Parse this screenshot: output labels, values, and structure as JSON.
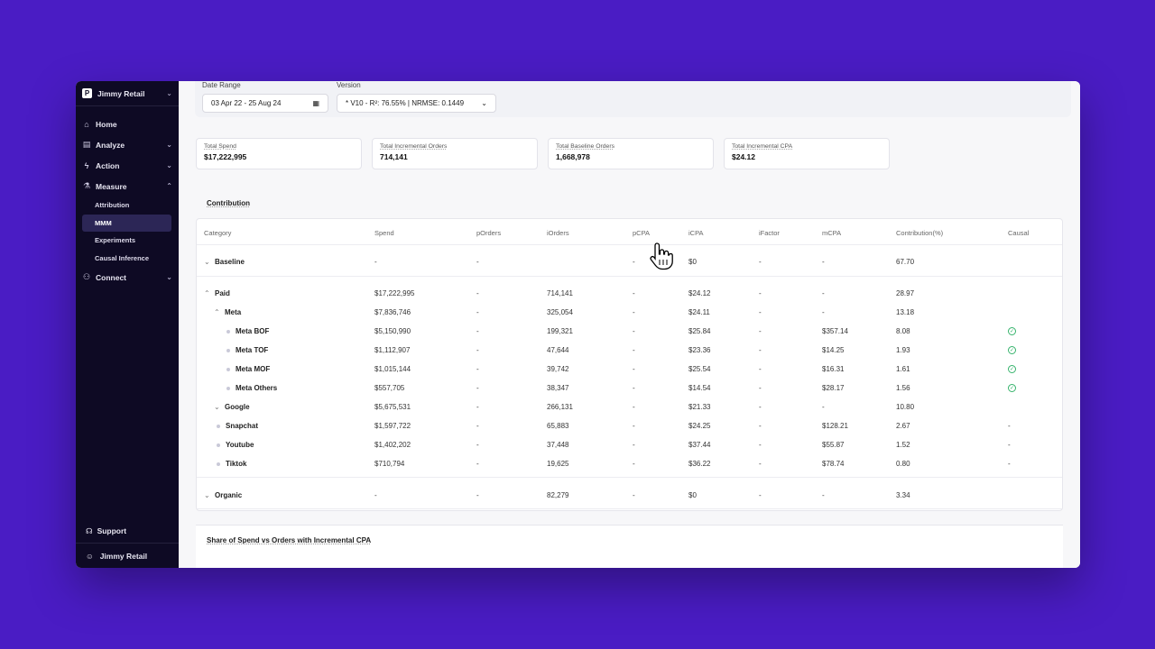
{
  "sidebar": {
    "workspace": "Jimmy Retail",
    "workspace_logo": "P",
    "nav": [
      {
        "label": "Home",
        "icon": "home-icon"
      },
      {
        "label": "Analyze",
        "icon": "analyze-icon"
      },
      {
        "label": "Action",
        "icon": "bolt-icon"
      },
      {
        "label": "Measure",
        "icon": "flask-icon"
      }
    ],
    "measure_sub": [
      "Attribution",
      "MMM",
      "Experiments",
      "Causal Inference"
    ],
    "connect": "Connect",
    "support": "Support",
    "user": "Jimmy Retail"
  },
  "filters": {
    "date_label": "Date Range",
    "date_value": "03 Apr 22 - 25 Aug 24",
    "version_label": "Version",
    "version_value": "* V10 - R²: 76.55% | NRMSE: 0.1449"
  },
  "cards": [
    {
      "label": "Total Spend",
      "value": "$17,222,995"
    },
    {
      "label": "Total Incremental Orders",
      "value": "714,141"
    },
    {
      "label": "Total Baseline Orders",
      "value": "1,668,978"
    },
    {
      "label": "Total Incremental CPA",
      "value": "$24.12"
    }
  ],
  "contribution": {
    "title": "Contribution",
    "headers": [
      "Category",
      "Spend",
      "pOrders",
      "iOrders",
      "pCPA",
      "iCPA",
      "iFactor",
      "mCPA",
      "Contribution(%)",
      "Causal"
    ],
    "rows": [
      {
        "name": "Baseline",
        "toggle": "⌄",
        "spend": "-",
        "porders": "-",
        "iorders": "",
        "pcpa": "-",
        "icpa": "$0",
        "ifactor": "-",
        "mcpa": "-",
        "contrib": "67.70",
        "causal": ""
      },
      {
        "name": "Paid",
        "toggle": "⌃",
        "spend": "$17,222,995",
        "porders": "-",
        "iorders": "714,141",
        "pcpa": "-",
        "icpa": "$24.12",
        "ifactor": "-",
        "mcpa": "-",
        "contrib": "28.97",
        "causal": ""
      },
      {
        "name": "Meta",
        "toggle": "⌃",
        "spend": "$7,836,746",
        "porders": "-",
        "iorders": "325,054",
        "pcpa": "-",
        "icpa": "$24.11",
        "ifactor": "-",
        "mcpa": "-",
        "contrib": "13.18",
        "causal": ""
      },
      {
        "name": "Meta BOF",
        "toggle": "",
        "spend": "$5,150,990",
        "porders": "-",
        "iorders": "199,321",
        "pcpa": "-",
        "icpa": "$25.84",
        "ifactor": "-",
        "mcpa": "$357.14",
        "contrib": "8.08",
        "causal": "check"
      },
      {
        "name": "Meta TOF",
        "toggle": "",
        "spend": "$1,112,907",
        "porders": "-",
        "iorders": "47,644",
        "pcpa": "-",
        "icpa": "$23.36",
        "ifactor": "-",
        "mcpa": "$14.25",
        "contrib": "1.93",
        "causal": "check"
      },
      {
        "name": "Meta MOF",
        "toggle": "",
        "spend": "$1,015,144",
        "porders": "-",
        "iorders": "39,742",
        "pcpa": "-",
        "icpa": "$25.54",
        "ifactor": "-",
        "mcpa": "$16.31",
        "contrib": "1.61",
        "causal": "check"
      },
      {
        "name": "Meta Others",
        "toggle": "",
        "spend": "$557,705",
        "porders": "-",
        "iorders": "38,347",
        "pcpa": "-",
        "icpa": "$14.54",
        "ifactor": "-",
        "mcpa": "$28.17",
        "contrib": "1.56",
        "causal": "check"
      },
      {
        "name": "Google",
        "toggle": "⌄",
        "spend": "$5,675,531",
        "porders": "-",
        "iorders": "266,131",
        "pcpa": "-",
        "icpa": "$21.33",
        "ifactor": "-",
        "mcpa": "-",
        "contrib": "10.80",
        "causal": ""
      },
      {
        "name": "Snapchat",
        "toggle": "",
        "spend": "$1,597,722",
        "porders": "-",
        "iorders": "65,883",
        "pcpa": "-",
        "icpa": "$24.25",
        "ifactor": "-",
        "mcpa": "$128.21",
        "contrib": "2.67",
        "causal": "-"
      },
      {
        "name": "Youtube",
        "toggle": "",
        "spend": "$1,402,202",
        "porders": "-",
        "iorders": "37,448",
        "pcpa": "-",
        "icpa": "$37.44",
        "ifactor": "-",
        "mcpa": "$55.87",
        "contrib": "1.52",
        "causal": "-"
      },
      {
        "name": "Tiktok",
        "toggle": "",
        "spend": "$710,794",
        "porders": "-",
        "iorders": "19,625",
        "pcpa": "-",
        "icpa": "$36.22",
        "ifactor": "-",
        "mcpa": "$78.74",
        "contrib": "0.80",
        "causal": "-"
      },
      {
        "name": "Organic",
        "toggle": "⌄",
        "spend": "-",
        "porders": "-",
        "iorders": "82,279",
        "pcpa": "-",
        "icpa": "$0",
        "ifactor": "-",
        "mcpa": "-",
        "contrib": "3.34",
        "causal": ""
      }
    ]
  },
  "share_title": "Share of Spend vs Orders with Incremental CPA",
  "colors": {
    "background": "#4a1cc4",
    "sidebar": "#0e0a24",
    "active_nav": "#2c2656",
    "causal_check": "#35b36b"
  }
}
